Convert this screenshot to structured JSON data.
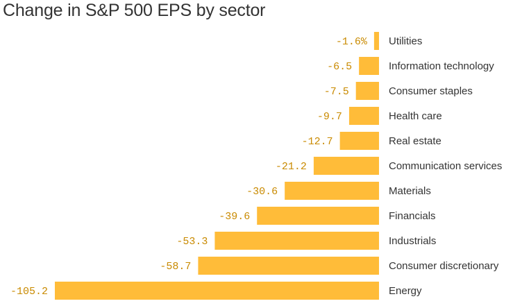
{
  "chart_data": {
    "type": "bar",
    "orientation": "horizontal",
    "title": "Change in S&P 500 EPS by sector",
    "xlabel": "",
    "ylabel": "",
    "unit_suffix_first": "%",
    "categories": [
      "Utilities",
      "Information technology",
      "Consumer staples",
      "Health care",
      "Real estate",
      "Communication services",
      "Materials",
      "Financials",
      "Industrials",
      "Consumer discretionary",
      "Energy"
    ],
    "values": [
      -1.6,
      -6.5,
      -7.5,
      -9.7,
      -12.7,
      -21.2,
      -30.6,
      -39.6,
      -53.3,
      -58.7,
      -105.2
    ],
    "labels": [
      "-1.6%",
      "-6.5",
      "-7.5",
      "-9.7",
      "-12.7",
      "-21.2",
      "-30.6",
      "-39.6",
      "-53.3",
      "-58.7",
      "-105.2"
    ],
    "xlim": [
      -105.2,
      0
    ],
    "grid": false,
    "legend": "none",
    "colors": {
      "bar": "#ffbc39",
      "value_label": "#c98a00",
      "category_label": "#333333"
    }
  }
}
